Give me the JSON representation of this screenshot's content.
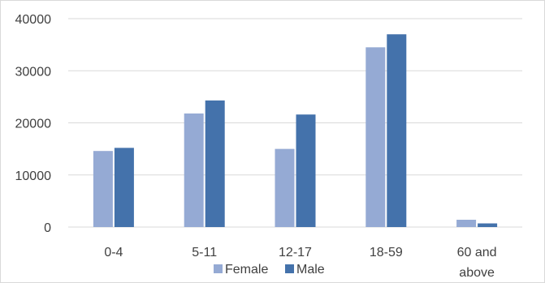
{
  "chart_data": {
    "type": "bar",
    "categories": [
      [
        "0-4"
      ],
      [
        "5-11"
      ],
      [
        "12-17"
      ],
      [
        "18-59"
      ],
      [
        "60 and",
        "above"
      ]
    ],
    "series": [
      {
        "name": "Female",
        "values": [
          14600,
          21800,
          15000,
          34500,
          1400
        ]
      },
      {
        "name": "Male",
        "values": [
          15200,
          24300,
          21600,
          37000,
          700
        ]
      }
    ],
    "ylim": [
      0,
      40000
    ],
    "yticks": [
      0,
      10000,
      20000,
      30000,
      40000
    ],
    "grid": true,
    "legend_position": "bottom",
    "title": "",
    "xlabel": "",
    "ylabel": ""
  },
  "colors": {
    "female": "#95aad4",
    "male": "#4472ab",
    "grid": "#d9d9d9",
    "text": "#404040"
  }
}
